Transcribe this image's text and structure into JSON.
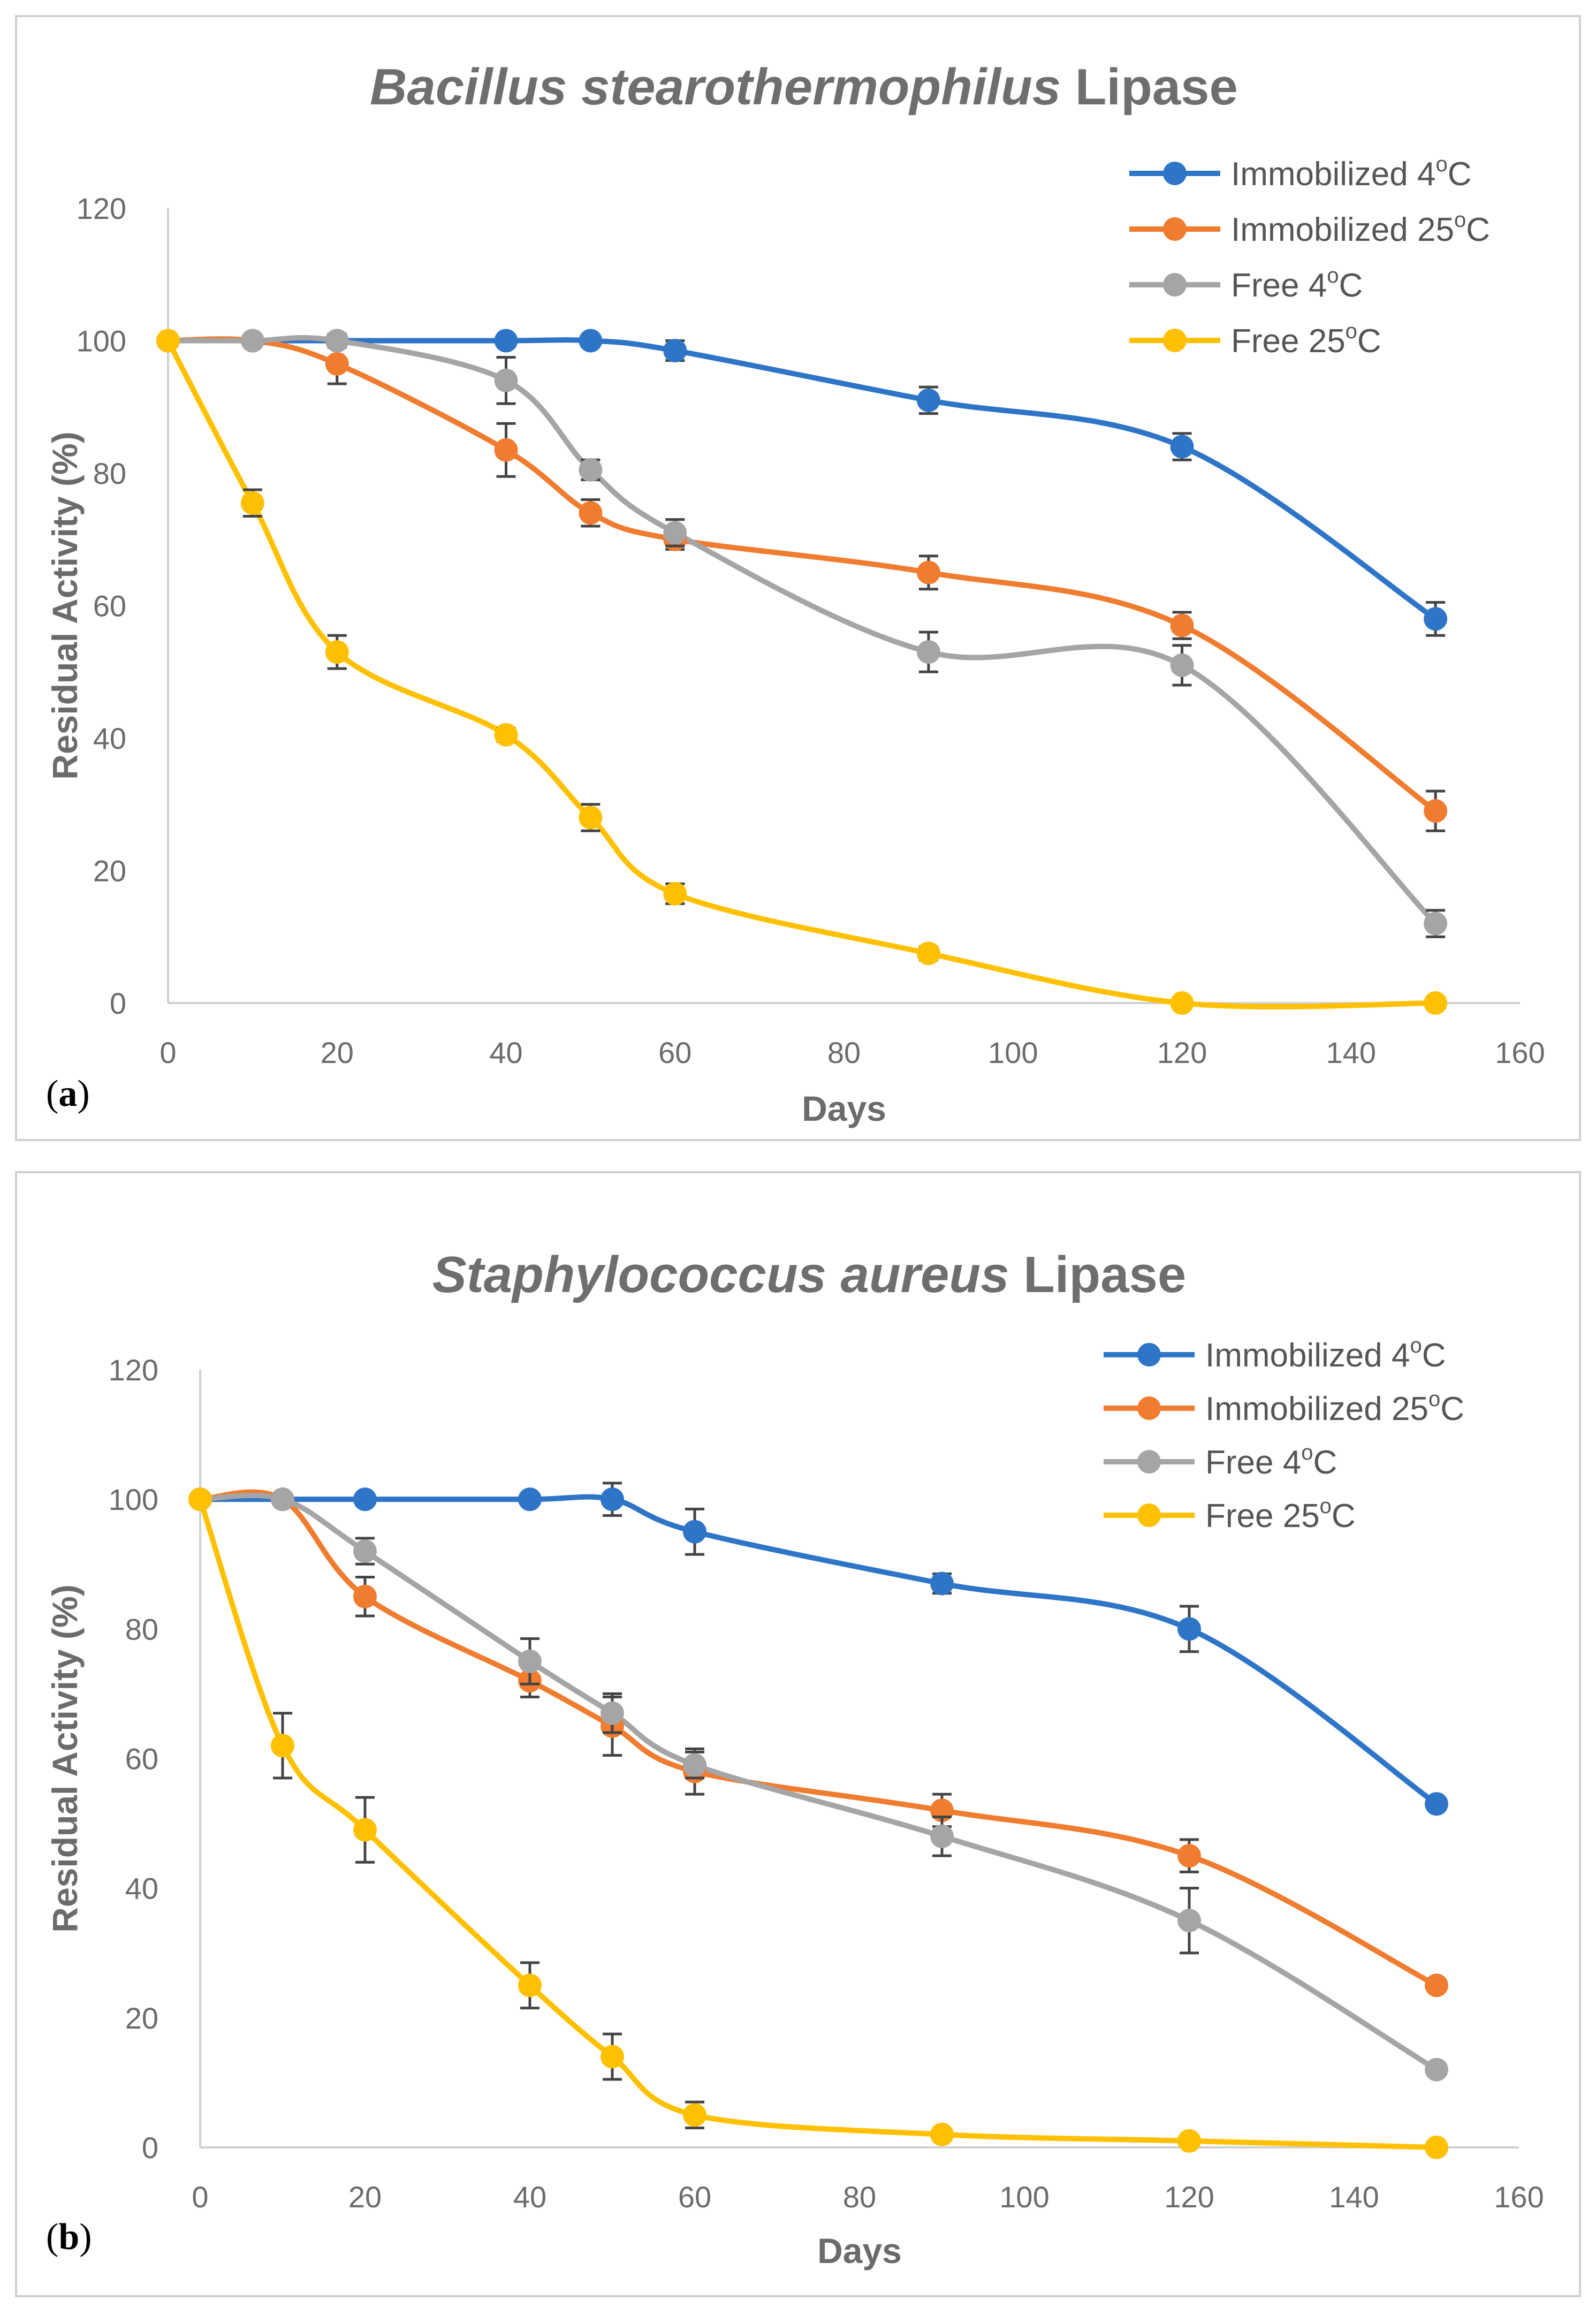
{
  "chart_data": [
    {
      "type": "line",
      "panel_label": "a",
      "title": {
        "italic": "Bacillus stearothermophilus",
        "normal": " Lipase"
      },
      "xlabel": "Days",
      "ylabel": "Residual Activity (%)",
      "xlim": [
        0,
        160
      ],
      "ylim": [
        0,
        120
      ],
      "xticks": [
        0,
        20,
        40,
        60,
        80,
        100,
        120,
        140,
        160
      ],
      "yticks": [
        0,
        20,
        40,
        60,
        80,
        100,
        120
      ],
      "legend_position": "top-right",
      "x": [
        0,
        10,
        20,
        40,
        50,
        60,
        90,
        120,
        150
      ],
      "series": [
        {
          "name": "Immobilized 4",
          "unit": "C",
          "deg": "o",
          "color": "#2e75c8",
          "values": [
            100,
            100,
            100,
            100,
            100,
            98.5,
            91,
            84,
            58
          ],
          "errors": [
            0,
            0,
            0,
            0,
            0,
            1.5,
            2,
            2,
            2.5
          ]
        },
        {
          "name": "Immobilized 25",
          "unit": "C",
          "deg": "o",
          "color": "#f07c30",
          "values": [
            100,
            100,
            96.5,
            83.5,
            74,
            70,
            65,
            57,
            29
          ],
          "errors": [
            0,
            0,
            3,
            4,
            2,
            1.5,
            2.5,
            2,
            3
          ]
        },
        {
          "name": "Free 4",
          "unit": "C",
          "deg": "o",
          "color": "#a5a5a5",
          "values": [
            100,
            100,
            100,
            94,
            80.5,
            71,
            53,
            51,
            12
          ],
          "errors": [
            0,
            0,
            1,
            3.5,
            1.5,
            2,
            3,
            3,
            2
          ]
        },
        {
          "name": "Free 25",
          "unit": "C",
          "deg": "o",
          "color": "#ffc000",
          "values": [
            100,
            75.5,
            53,
            40.5,
            28,
            16.5,
            7.5,
            0,
            0
          ],
          "errors": [
            0,
            2,
            2.5,
            1,
            2,
            1.5,
            1,
            0,
            0
          ]
        }
      ]
    },
    {
      "type": "line",
      "panel_label": "b",
      "title": {
        "italic": "Staphylococcus aureus",
        "normal": " Lipase"
      },
      "xlabel": "Days",
      "ylabel": "Residual Activity (%)",
      "xlim": [
        0,
        160
      ],
      "ylim": [
        0,
        120
      ],
      "xticks": [
        0,
        20,
        40,
        60,
        80,
        100,
        120,
        140,
        160
      ],
      "yticks": [
        0,
        20,
        40,
        60,
        80,
        100,
        120
      ],
      "legend_position": "top-right",
      "x": [
        0,
        10,
        20,
        40,
        50,
        60,
        90,
        120,
        150
      ],
      "series": [
        {
          "name": "Immobilized 4",
          "unit": "C",
          "deg": "o",
          "color": "#2e75c8",
          "values": [
            100,
            100,
            100,
            100,
            100,
            95,
            87,
            80,
            53
          ],
          "errors": [
            0,
            0,
            0,
            0,
            2.5,
            3.5,
            1.5,
            3.5,
            0
          ]
        },
        {
          "name": "Immobilized 25",
          "unit": "C",
          "deg": "o",
          "color": "#f07c30",
          "values": [
            100,
            100,
            85,
            72,
            65,
            58,
            52,
            45,
            25
          ],
          "errors": [
            0,
            0,
            3,
            2.5,
            4.5,
            3.5,
            2.5,
            2.5,
            0
          ]
        },
        {
          "name": "Free 4",
          "unit": "C",
          "deg": "o",
          "color": "#a5a5a5",
          "values": [
            100,
            100,
            92,
            75,
            67,
            59,
            48,
            35,
            12
          ],
          "errors": [
            0,
            0,
            2,
            3.5,
            3,
            2,
            3,
            5,
            0
          ]
        },
        {
          "name": "Free 25",
          "unit": "C",
          "deg": "o",
          "color": "#ffc000",
          "values": [
            100,
            62,
            49,
            25,
            14,
            5,
            2,
            1,
            0
          ],
          "errors": [
            0,
            5,
            5,
            3.5,
            3.5,
            2,
            0,
            0,
            0
          ]
        }
      ]
    }
  ]
}
